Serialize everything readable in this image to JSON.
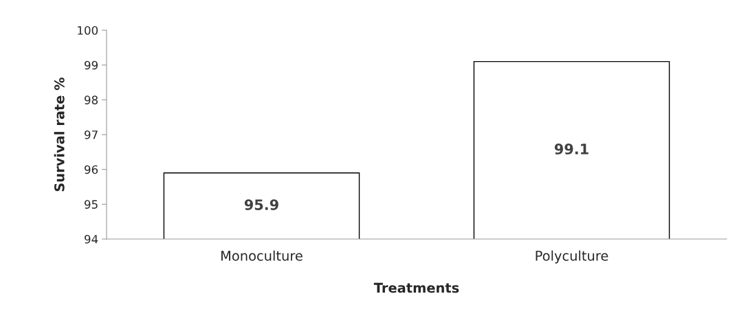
{
  "chart_data": {
    "type": "bar",
    "xlabel": "Treatments",
    "ylabel": "Survival rate %",
    "categories": [
      "Monoculture",
      "Polyculture"
    ],
    "values": [
      95.9,
      99.1
    ],
    "color": "#ffffff",
    "ylim": [
      94,
      100
    ],
    "yticks": [
      94,
      95,
      96,
      97,
      98,
      99,
      100
    ],
    "data_labels": true,
    "grid": false,
    "legend": false
  }
}
